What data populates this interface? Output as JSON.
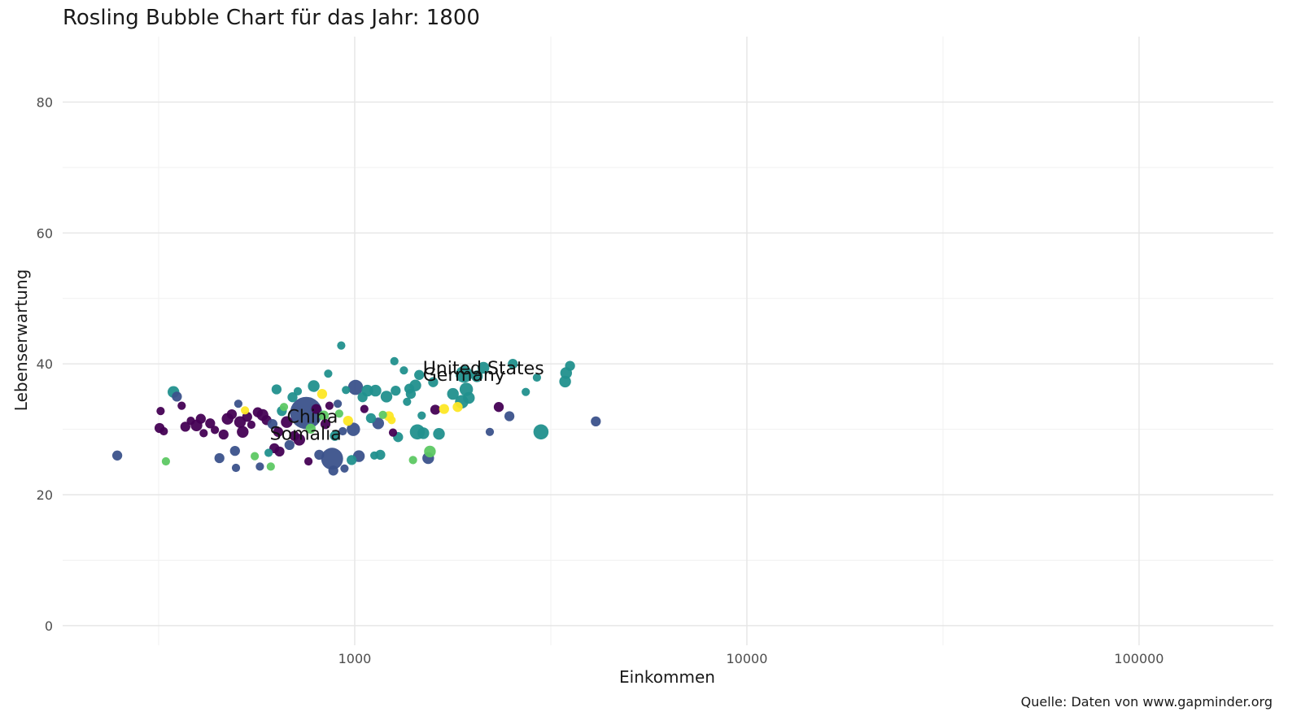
{
  "chart_data": {
    "type": "scatter",
    "title": "Rosling Bubble Chart für das Jahr: 1800",
    "xlabel": "Einkommen",
    "ylabel": "Lebenserwartung",
    "caption": "Quelle: Daten von www.gapminder.org",
    "x_scale": "log10",
    "xlim": [
      180,
      220000
    ],
    "ylim": [
      -3,
      90
    ],
    "x_ticks": [
      1000,
      10000,
      100000
    ],
    "x_tick_labels": [
      "1000",
      "10000",
      "100000"
    ],
    "y_ticks": [
      0,
      20,
      40,
      60,
      80
    ],
    "y_tick_labels": [
      "0",
      "20",
      "40",
      "60",
      "80"
    ],
    "grid": true,
    "legend": "none",
    "colors": {
      "dark_purple": "#440154",
      "indigo": "#3b528b",
      "teal": "#21908d",
      "green": "#5dc863",
      "yellow": "#fde725"
    },
    "labels": [
      {
        "text": "United States",
        "x": 2130,
        "y": 39.4
      },
      {
        "text": "Germany",
        "x": 1900,
        "y": 38.4
      },
      {
        "text": "China",
        "x": 780,
        "y": 32.0
      },
      {
        "text": "Somalia",
        "x": 750,
        "y": 29.4
      }
    ],
    "points": [
      {
        "x": 248,
        "y": 26.0,
        "size": 3,
        "color": "indigo"
      },
      {
        "x": 330,
        "y": 25.1,
        "size": 2,
        "color": "green"
      },
      {
        "x": 345,
        "y": 35.7,
        "size": 4,
        "color": "teal"
      },
      {
        "x": 352,
        "y": 35.0,
        "size": 3,
        "color": "indigo"
      },
      {
        "x": 320,
        "y": 32.8,
        "size": 2,
        "color": "dark_purple"
      },
      {
        "x": 318,
        "y": 30.2,
        "size": 3,
        "color": "dark_purple"
      },
      {
        "x": 326,
        "y": 29.7,
        "size": 2,
        "color": "dark_purple"
      },
      {
        "x": 362,
        "y": 33.6,
        "size": 2,
        "color": "dark_purple"
      },
      {
        "x": 370,
        "y": 30.4,
        "size": 3,
        "color": "dark_purple"
      },
      {
        "x": 382,
        "y": 31.3,
        "size": 2,
        "color": "dark_purple"
      },
      {
        "x": 395,
        "y": 30.6,
        "size": 4,
        "color": "dark_purple"
      },
      {
        "x": 405,
        "y": 31.6,
        "size": 3,
        "color": "dark_purple"
      },
      {
        "x": 412,
        "y": 29.4,
        "size": 2,
        "color": "dark_purple"
      },
      {
        "x": 428,
        "y": 30.9,
        "size": 3,
        "color": "dark_purple"
      },
      {
        "x": 440,
        "y": 29.9,
        "size": 2,
        "color": "dark_purple"
      },
      {
        "x": 452,
        "y": 25.6,
        "size": 3,
        "color": "indigo"
      },
      {
        "x": 463,
        "y": 29.2,
        "size": 3,
        "color": "dark_purple"
      },
      {
        "x": 474,
        "y": 31.6,
        "size": 4,
        "color": "dark_purple"
      },
      {
        "x": 486,
        "y": 32.3,
        "size": 3,
        "color": "dark_purple"
      },
      {
        "x": 495,
        "y": 26.7,
        "size": 3,
        "color": "indigo"
      },
      {
        "x": 498,
        "y": 24.1,
        "size": 2,
        "color": "indigo"
      },
      {
        "x": 505,
        "y": 33.9,
        "size": 2,
        "color": "indigo"
      },
      {
        "x": 510,
        "y": 31.1,
        "size": 4,
        "color": "dark_purple"
      },
      {
        "x": 518,
        "y": 29.6,
        "size": 4,
        "color": "dark_purple"
      },
      {
        "x": 525,
        "y": 32.9,
        "size": 2,
        "color": "yellow"
      },
      {
        "x": 532,
        "y": 31.9,
        "size": 3,
        "color": "dark_purple"
      },
      {
        "x": 545,
        "y": 30.7,
        "size": 2,
        "color": "dark_purple"
      },
      {
        "x": 556,
        "y": 25.9,
        "size": 2,
        "color": "green"
      },
      {
        "x": 566,
        "y": 32.6,
        "size": 3,
        "color": "dark_purple"
      },
      {
        "x": 573,
        "y": 24.3,
        "size": 2,
        "color": "indigo"
      },
      {
        "x": 582,
        "y": 32.2,
        "size": 4,
        "color": "dark_purple"
      },
      {
        "x": 596,
        "y": 31.4,
        "size": 3,
        "color": "dark_purple"
      },
      {
        "x": 603,
        "y": 26.4,
        "size": 2,
        "color": "teal"
      },
      {
        "x": 611,
        "y": 24.3,
        "size": 2,
        "color": "green"
      },
      {
        "x": 617,
        "y": 30.8,
        "size": 3,
        "color": "indigo"
      },
      {
        "x": 624,
        "y": 27.1,
        "size": 3,
        "color": "dark_purple"
      },
      {
        "x": 632,
        "y": 36.1,
        "size": 3,
        "color": "teal"
      },
      {
        "x": 638,
        "y": 29.6,
        "size": 3,
        "color": "dark_purple"
      },
      {
        "x": 643,
        "y": 26.6,
        "size": 3,
        "color": "dark_purple"
      },
      {
        "x": 652,
        "y": 32.8,
        "size": 3,
        "color": "teal"
      },
      {
        "x": 660,
        "y": 33.4,
        "size": 2,
        "color": "green"
      },
      {
        "x": 671,
        "y": 31.1,
        "size": 4,
        "color": "dark_purple"
      },
      {
        "x": 682,
        "y": 27.6,
        "size": 3,
        "color": "indigo"
      },
      {
        "x": 694,
        "y": 34.9,
        "size": 3,
        "color": "teal"
      },
      {
        "x": 701,
        "y": 29.0,
        "size": 3,
        "color": "dark_purple"
      },
      {
        "x": 716,
        "y": 35.8,
        "size": 2,
        "color": "teal"
      },
      {
        "x": 722,
        "y": 28.4,
        "size": 4,
        "color": "dark_purple"
      },
      {
        "x": 752,
        "y": 32.5,
        "size": 16,
        "color": "indigo"
      },
      {
        "x": 762,
        "y": 25.1,
        "size": 2,
        "color": "dark_purple"
      },
      {
        "x": 772,
        "y": 30.1,
        "size": 3,
        "color": "green"
      },
      {
        "x": 786,
        "y": 36.6,
        "size": 4,
        "color": "teal"
      },
      {
        "x": 798,
        "y": 33.1,
        "size": 3,
        "color": "dark_purple"
      },
      {
        "x": 812,
        "y": 26.1,
        "size": 3,
        "color": "indigo"
      },
      {
        "x": 826,
        "y": 35.4,
        "size": 3,
        "color": "yellow"
      },
      {
        "x": 834,
        "y": 32.1,
        "size": 3,
        "color": "green"
      },
      {
        "x": 842,
        "y": 30.8,
        "size": 3,
        "color": "dark_purple"
      },
      {
        "x": 856,
        "y": 38.5,
        "size": 2,
        "color": "teal"
      },
      {
        "x": 862,
        "y": 33.6,
        "size": 2,
        "color": "dark_purple"
      },
      {
        "x": 876,
        "y": 25.5,
        "size": 10,
        "color": "indigo"
      },
      {
        "x": 882,
        "y": 23.7,
        "size": 3,
        "color": "indigo"
      },
      {
        "x": 890,
        "y": 29.0,
        "size": 3,
        "color": "teal"
      },
      {
        "x": 905,
        "y": 33.9,
        "size": 2,
        "color": "indigo"
      },
      {
        "x": 913,
        "y": 32.4,
        "size": 2,
        "color": "green"
      },
      {
        "x": 924,
        "y": 42.8,
        "size": 2,
        "color": "teal"
      },
      {
        "x": 932,
        "y": 29.7,
        "size": 2,
        "color": "indigo"
      },
      {
        "x": 942,
        "y": 24.0,
        "size": 2,
        "color": "indigo"
      },
      {
        "x": 950,
        "y": 36.0,
        "size": 2,
        "color": "teal"
      },
      {
        "x": 962,
        "y": 31.3,
        "size": 3,
        "color": "yellow"
      },
      {
        "x": 982,
        "y": 25.3,
        "size": 3,
        "color": "teal"
      },
      {
        "x": 992,
        "y": 30.0,
        "size": 5,
        "color": "indigo"
      },
      {
        "x": 1005,
        "y": 36.4,
        "size": 6,
        "color": "indigo"
      },
      {
        "x": 1025,
        "y": 25.9,
        "size": 4,
        "color": "indigo"
      },
      {
        "x": 1047,
        "y": 34.9,
        "size": 3,
        "color": "teal"
      },
      {
        "x": 1058,
        "y": 33.1,
        "size": 2,
        "color": "dark_purple"
      },
      {
        "x": 1077,
        "y": 35.9,
        "size": 4,
        "color": "teal"
      },
      {
        "x": 1100,
        "y": 31.7,
        "size": 3,
        "color": "teal"
      },
      {
        "x": 1122,
        "y": 26.0,
        "size": 2,
        "color": "teal"
      },
      {
        "x": 1130,
        "y": 35.9,
        "size": 4,
        "color": "teal"
      },
      {
        "x": 1148,
        "y": 30.9,
        "size": 4,
        "color": "indigo"
      },
      {
        "x": 1162,
        "y": 26.1,
        "size": 3,
        "color": "teal"
      },
      {
        "x": 1180,
        "y": 32.2,
        "size": 2,
        "color": "green"
      },
      {
        "x": 1205,
        "y": 35.0,
        "size": 4,
        "color": "teal"
      },
      {
        "x": 1222,
        "y": 32.0,
        "size": 3,
        "color": "yellow"
      },
      {
        "x": 1242,
        "y": 31.4,
        "size": 2,
        "color": "yellow"
      },
      {
        "x": 1252,
        "y": 29.5,
        "size": 2,
        "color": "dark_purple"
      },
      {
        "x": 1262,
        "y": 40.4,
        "size": 2,
        "color": "teal"
      },
      {
        "x": 1272,
        "y": 35.9,
        "size": 3,
        "color": "teal"
      },
      {
        "x": 1290,
        "y": 28.8,
        "size": 3,
        "color": "teal"
      },
      {
        "x": 1335,
        "y": 39.0,
        "size": 2,
        "color": "teal"
      },
      {
        "x": 1360,
        "y": 34.2,
        "size": 2,
        "color": "teal"
      },
      {
        "x": 1378,
        "y": 36.2,
        "size": 3,
        "color": "teal"
      },
      {
        "x": 1390,
        "y": 35.4,
        "size": 3,
        "color": "teal"
      },
      {
        "x": 1408,
        "y": 25.3,
        "size": 2,
        "color": "green"
      },
      {
        "x": 1428,
        "y": 36.7,
        "size": 4,
        "color": "teal"
      },
      {
        "x": 1445,
        "y": 29.6,
        "size": 6,
        "color": "teal"
      },
      {
        "x": 1460,
        "y": 38.3,
        "size": 3,
        "color": "teal"
      },
      {
        "x": 1482,
        "y": 32.1,
        "size": 2,
        "color": "teal"
      },
      {
        "x": 1496,
        "y": 29.4,
        "size": 4,
        "color": "teal"
      },
      {
        "x": 1540,
        "y": 25.6,
        "size": 4,
        "color": "indigo"
      },
      {
        "x": 1555,
        "y": 26.6,
        "size": 4,
        "color": "green"
      },
      {
        "x": 1585,
        "y": 37.2,
        "size": 3,
        "color": "teal"
      },
      {
        "x": 1605,
        "y": 33.0,
        "size": 3,
        "color": "dark_purple"
      },
      {
        "x": 1640,
        "y": 29.3,
        "size": 4,
        "color": "teal"
      },
      {
        "x": 1690,
        "y": 33.1,
        "size": 3,
        "color": "yellow"
      },
      {
        "x": 1780,
        "y": 35.4,
        "size": 4,
        "color": "teal"
      },
      {
        "x": 1830,
        "y": 33.4,
        "size": 3,
        "color": "yellow"
      },
      {
        "x": 1875,
        "y": 34.2,
        "size": 5,
        "color": "teal"
      },
      {
        "x": 1900,
        "y": 38.4,
        "size": 7,
        "color": "teal"
      },
      {
        "x": 1925,
        "y": 36.1,
        "size": 5,
        "color": "teal"
      },
      {
        "x": 1955,
        "y": 34.8,
        "size": 4,
        "color": "teal"
      },
      {
        "x": 2050,
        "y": 38.1,
        "size": 4,
        "color": "teal"
      },
      {
        "x": 2130,
        "y": 39.4,
        "size": 4,
        "color": "teal"
      },
      {
        "x": 2210,
        "y": 29.6,
        "size": 2,
        "color": "indigo"
      },
      {
        "x": 2330,
        "y": 33.4,
        "size": 3,
        "color": "dark_purple"
      },
      {
        "x": 2480,
        "y": 32.0,
        "size": 3,
        "color": "indigo"
      },
      {
        "x": 2530,
        "y": 40.0,
        "size": 3,
        "color": "teal"
      },
      {
        "x": 2730,
        "y": 35.7,
        "size": 2,
        "color": "teal"
      },
      {
        "x": 2915,
        "y": 37.9,
        "size": 2,
        "color": "teal"
      },
      {
        "x": 2985,
        "y": 29.6,
        "size": 6,
        "color": "teal"
      },
      {
        "x": 3440,
        "y": 37.3,
        "size": 4,
        "color": "teal"
      },
      {
        "x": 3460,
        "y": 38.6,
        "size": 4,
        "color": "teal"
      },
      {
        "x": 3540,
        "y": 39.7,
        "size": 3,
        "color": "teal"
      },
      {
        "x": 4120,
        "y": 31.2,
        "size": 3,
        "color": "indigo"
      }
    ]
  }
}
